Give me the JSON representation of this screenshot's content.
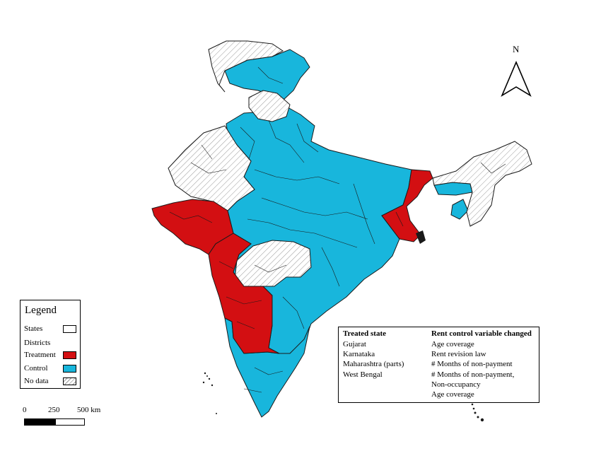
{
  "north_label": "N",
  "legend": {
    "title": "Legend",
    "states_label": "States",
    "districts_label": "Districts",
    "treatment_label": "Treatment",
    "control_label": "Control",
    "nodata_label": "No data"
  },
  "colors": {
    "treatment": "#d30f12",
    "control": "#18b6dc",
    "no_data_fill": "#ffffff",
    "hatch": "#9a9a9a",
    "border": "#1a1a1a"
  },
  "scale": {
    "labels": [
      "0",
      "250",
      "500 km"
    ]
  },
  "table": {
    "header": [
      "Treated state",
      "Rent control variable changed"
    ],
    "rows": [
      [
        "Gujarat",
        "Age coverage"
      ],
      [
        "Karnataka",
        "Rent revision law"
      ],
      [
        "Maharashtra (parts)",
        "# Months of non-payment"
      ],
      [
        "West Bengal",
        "# Months of non-payment,"
      ],
      [
        "",
        "Non-occupancy"
      ],
      [
        "",
        "Age coverage"
      ]
    ]
  }
}
